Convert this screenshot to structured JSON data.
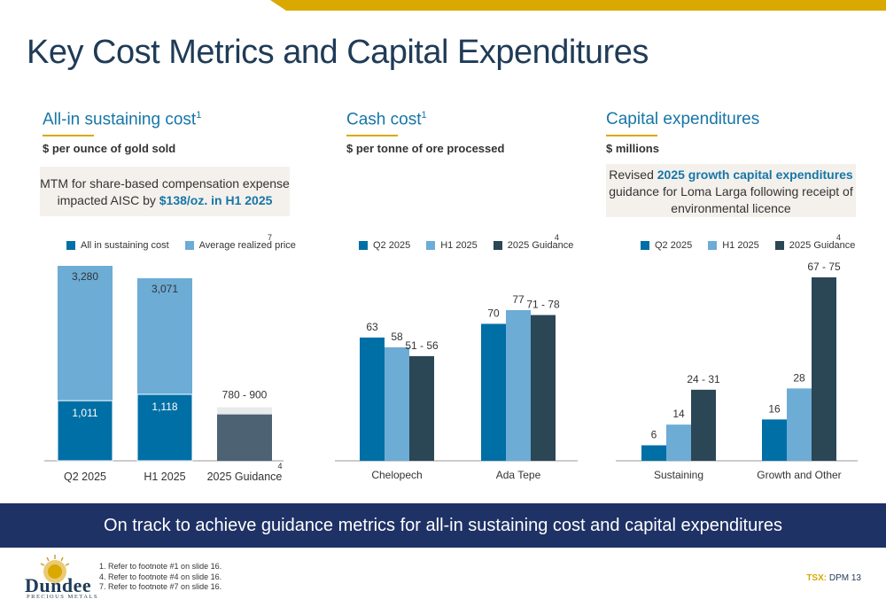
{
  "page_title": "Key Cost Metrics and Capital Expenditures",
  "colors": {
    "gold": "#d9a900",
    "navy": "#1f3266",
    "blue": "#006fa6",
    "light_blue": "#6cacd5",
    "dark_slate": "#2b4655"
  },
  "sections": {
    "aisc": {
      "heading": "All-in sustaining cost",
      "heading_sup": "1",
      "subheading": "$ per ounce of gold sold",
      "note_line1": "MTM for share-based compensation expense",
      "note_line2_prefix": "impacted AISC by ",
      "note_line2_bold": "$138/oz. in H1 2025"
    },
    "cash": {
      "heading": "Cash cost",
      "heading_sup": "1",
      "subheading": "$ per tonne of ore processed"
    },
    "capex": {
      "heading": "Capital expenditures",
      "subheading": "$ millions",
      "note_prefix": "Revised ",
      "note_bold": "2025 growth capital expenditures",
      "note_line2": "guidance for Loma Larga following receipt of",
      "note_line3": "environmental licence"
    }
  },
  "chart_data": [
    {
      "type": "bar",
      "title": "All-in sustaining cost",
      "categories": [
        "Q2 2025",
        "H1 2025",
        "2025 Guidance"
      ],
      "series": [
        {
          "name": "All in sustaining cost",
          "values": [
            1011,
            1118,
            null
          ],
          "labels": [
            "1,011",
            "1,118",
            ""
          ]
        },
        {
          "name": "Average realized price",
          "values": [
            3280,
            3071,
            null
          ],
          "labels": [
            "3,280",
            "3,071",
            ""
          ]
        }
      ],
      "guidance": {
        "low": 780,
        "high": 900,
        "label": "780 - 900"
      },
      "legend_footnote": "7",
      "axis_footnote": "4",
      "ylim": [
        0,
        3500
      ]
    },
    {
      "type": "bar",
      "title": "Cash cost",
      "categories": [
        "Chelopech",
        "Ada Tepe"
      ],
      "series": [
        {
          "name": "Q2 2025",
          "values": [
            63,
            70
          ],
          "labels": [
            "63",
            "70"
          ]
        },
        {
          "name": "H1 2025",
          "values": [
            58,
            77
          ],
          "labels": [
            "58",
            "77"
          ]
        },
        {
          "name": "2025 Guidance",
          "values": [
            53.5,
            74.5
          ],
          "labels": [
            "51 - 56",
            "71 - 78"
          ]
        }
      ],
      "legend_footnote": "4",
      "ylim": [
        0,
        90
      ]
    },
    {
      "type": "bar",
      "title": "Capital expenditures",
      "categories": [
        "Sustaining",
        "Growth and Other"
      ],
      "series": [
        {
          "name": "Q2 2025",
          "values": [
            6,
            16
          ],
          "labels": [
            "6",
            "16"
          ]
        },
        {
          "name": "H1 2025",
          "values": [
            14,
            28
          ],
          "labels": [
            "14",
            "28"
          ]
        },
        {
          "name": "2025 Guidance",
          "values": [
            27.5,
            71
          ],
          "labels": [
            "24 - 31",
            "67 - 75"
          ]
        }
      ],
      "legend_footnote": "4",
      "ylim": [
        0,
        80
      ]
    }
  ],
  "banner_text": "On track to achieve guidance metrics for all-in sustaining cost and capital expenditures",
  "footnotes": [
    "1. Refer to footnote #1 on slide 16.",
    "4. Refer to footnote #4 on slide 16.",
    "7. Refer to footnote #7 on slide 16."
  ],
  "logo": {
    "name": "Dundee",
    "sub": "PRECIOUS METALS"
  },
  "tsx": {
    "label": "TSX:",
    "value": "DPM 13"
  }
}
